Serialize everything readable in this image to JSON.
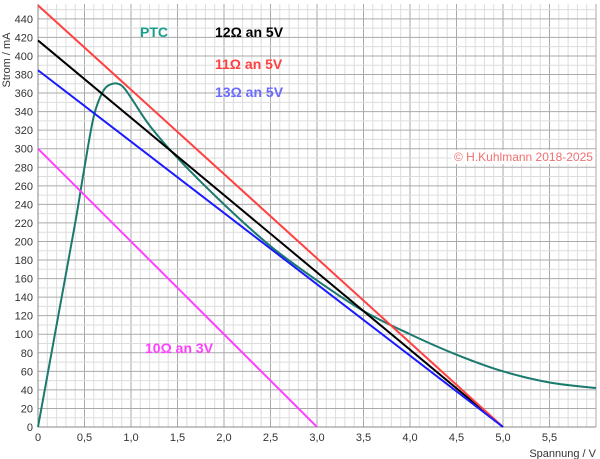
{
  "chart_data": {
    "type": "line",
    "xlabel": "Spannung / V",
    "ylabel": "Strom / mA",
    "xlim": [
      0,
      6
    ],
    "ylim": [
      0,
      456
    ],
    "xticks": [
      "0",
      "0,5",
      "1,0",
      "1,5",
      "2,0",
      "2,5",
      "3,0",
      "3,5",
      "4,0",
      "4,5",
      "5,0",
      "5,5"
    ],
    "yticks": [
      0,
      20,
      40,
      60,
      80,
      100,
      120,
      140,
      160,
      180,
      200,
      220,
      240,
      260,
      280,
      300,
      320,
      340,
      360,
      380,
      400,
      420,
      440
    ],
    "grid": true,
    "series": [
      {
        "name": "PTC",
        "color": "#1a7a6e",
        "labelColor": "#1a9e8e",
        "x": [
          0,
          0.2,
          0.4,
          0.5,
          0.6,
          0.7,
          0.8,
          0.9,
          1.0,
          1.2,
          1.5,
          2.0,
          2.5,
          3.0,
          3.5,
          4.0,
          4.5,
          5.0,
          5.5,
          6.0
        ],
        "y": [
          0,
          110,
          220,
          280,
          335,
          362,
          370,
          368,
          355,
          325,
          290,
          240,
          195,
          158,
          125,
          100,
          78,
          60,
          48,
          42
        ]
      },
      {
        "name": "12Ω an 5V",
        "color": "#000000",
        "x": [
          0,
          5
        ],
        "y": [
          416.7,
          0
        ]
      },
      {
        "name": "11Ω an 5V",
        "color": "#ff4040",
        "x": [
          0,
          5
        ],
        "y": [
          454.5,
          0
        ]
      },
      {
        "name": "13Ω an 5V",
        "color": "#1a1aff",
        "labelColor": "#6a6aff",
        "x": [
          0,
          5
        ],
        "y": [
          384.6,
          0
        ]
      },
      {
        "name": "10Ω an 3V",
        "color": "#ff40ff",
        "x": [
          0,
          3
        ],
        "y": [
          300,
          0
        ]
      }
    ]
  },
  "copyright": "© H.Kuhlmann 2018-2025"
}
